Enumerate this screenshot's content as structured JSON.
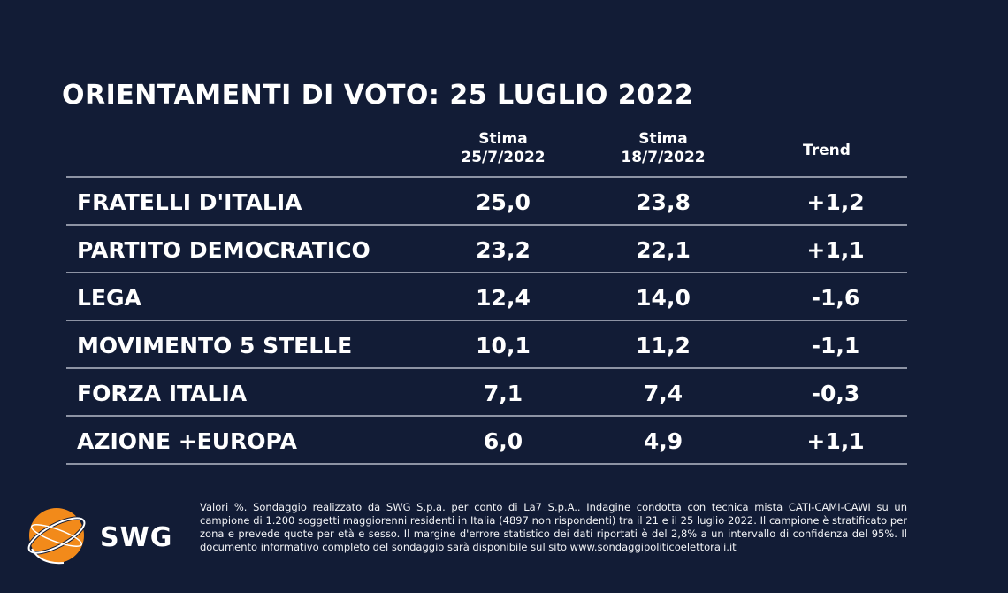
{
  "title": "ORIENTAMENTI DI VOTO: 25 LUGLIO 2022",
  "columns": {
    "stima1_line1": "Stima",
    "stima1_line2": "25/7/2022",
    "stima2_line1": "Stima",
    "stima2_line2": "18/7/2022",
    "trend": "Trend"
  },
  "chart_data": {
    "type": "table",
    "title": "ORIENTAMENTI DI VOTO: 25 LUGLIO 2022",
    "columns": [
      "Stima 25/7/2022",
      "Stima 18/7/2022",
      "Trend"
    ],
    "rows": [
      {
        "party": "FRATELLI D'ITALIA",
        "v1": "25,0",
        "v2": "23,8",
        "trend": "+1,2"
      },
      {
        "party": "PARTITO DEMOCRATICO",
        "v1": "23,2",
        "v2": "22,1",
        "trend": "+1,1"
      },
      {
        "party": "LEGA",
        "v1": "12,4",
        "v2": "14,0",
        "trend": "-1,6"
      },
      {
        "party": "MOVIMENTO 5 STELLE",
        "v1": "10,1",
        "v2": "11,2",
        "trend": "-1,1"
      },
      {
        "party": "FORZA ITALIA",
        "v1": "7,1",
        "v2": "7,4",
        "trend": "-0,3"
      },
      {
        "party": "AZIONE +EUROPA",
        "v1": "6,0",
        "v2": "4,9",
        "trend": "+1,1"
      }
    ]
  },
  "logo": {
    "text": "SWG",
    "name": "swg-logo-icon",
    "color": "#f28a1a"
  },
  "note": "Valori %. Sondaggio realizzato da SWG S.p.a. per conto di La7 S.p.A.. Indagine condotta con tecnica mista CATI-CAMI-CAWI su un campione di 1.200 soggetti maggiorenni residenti in Italia (4897 non rispondenti) tra il 21 e il 25 luglio 2022. Il campione è stratificato per zona e prevede quote per età e sesso. Il margine d'errore statistico dei dati riportati è del 2,8% a un intervallo di confidenza del 95%. Il documento informativo completo del sondaggio sarà disponibile sul sito www.sondaggipoliticoelettorali.it",
  "colors": {
    "background": "#121c36",
    "text": "#ffffff",
    "rule": "#8d93a4",
    "logo": "#f28a1a"
  }
}
